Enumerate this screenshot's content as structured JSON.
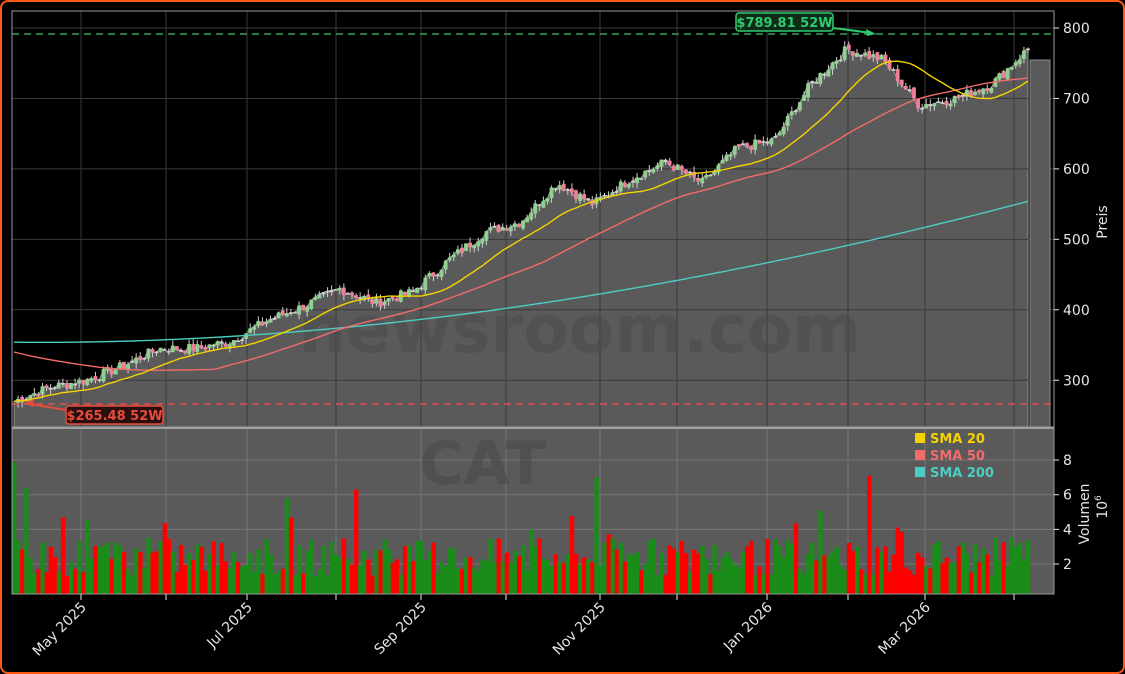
{
  "chart_data": [
    {
      "type": "candlestick",
      "title": "",
      "ticker_watermark": "CAT",
      "site_watermark": "newsroom.com",
      "ylabel": "Preis",
      "ylim": [
        236,
        824
      ],
      "yticks": [
        300,
        400,
        500,
        600,
        700,
        800
      ],
      "x_tick_labels": [
        "May 2025",
        "Jul 2025",
        "Sep 2025",
        "Nov 2025",
        "Jan 2026",
        "Mar 2026"
      ],
      "grid": true,
      "annotations": [
        {
          "label": "$789.81 52W",
          "value": 789.81,
          "type": "52-week high",
          "color": "#2ecc71"
        },
        {
          "label": "$265.48 52W",
          "value": 265.48,
          "type": "52-week low",
          "color": "#e74c3c"
        }
      ],
      "legend": [
        {
          "label": "SMA 20",
          "color": "#f5d300"
        },
        {
          "label": "SMA 50",
          "color": "#f36b6b"
        },
        {
          "label": "SMA 200",
          "color": "#4ecdc4"
        }
      ],
      "close_approx": [
        {
          "date": "2025-04-08",
          "close": 270
        },
        {
          "date": "2025-04-22",
          "close": 290
        },
        {
          "date": "2025-05-06",
          "close": 300
        },
        {
          "date": "2025-05-20",
          "close": 320
        },
        {
          "date": "2025-05-27",
          "close": 345
        },
        {
          "date": "2025-06-10",
          "close": 345
        },
        {
          "date": "2025-06-24",
          "close": 355
        },
        {
          "date": "2025-07-08",
          "close": 385
        },
        {
          "date": "2025-07-22",
          "close": 405
        },
        {
          "date": "2025-08-05",
          "close": 430
        },
        {
          "date": "2025-08-19",
          "close": 410
        },
        {
          "date": "2025-09-02",
          "close": 425
        },
        {
          "date": "2025-09-16",
          "close": 470
        },
        {
          "date": "2025-09-30",
          "close": 510
        },
        {
          "date": "2025-10-14",
          "close": 525
        },
        {
          "date": "2025-10-28",
          "close": 580
        },
        {
          "date": "2025-11-11",
          "close": 550
        },
        {
          "date": "2025-11-25",
          "close": 585
        },
        {
          "date": "2025-12-09",
          "close": 610
        },
        {
          "date": "2025-12-23",
          "close": 580
        },
        {
          "date": "2026-01-06",
          "close": 630
        },
        {
          "date": "2026-01-20",
          "close": 640
        },
        {
          "date": "2026-02-03",
          "close": 720
        },
        {
          "date": "2026-02-10",
          "close": 770
        },
        {
          "date": "2026-02-24",
          "close": 755
        },
        {
          "date": "2026-03-10",
          "close": 690
        },
        {
          "date": "2026-03-24",
          "close": 700
        },
        {
          "date": "2026-04-07",
          "close": 720
        },
        {
          "date": "2026-04-10",
          "close": 770
        }
      ],
      "sma": [
        {
          "name": "SMA 20",
          "start": 325,
          "end": 710
        },
        {
          "name": "SMA 50",
          "start": 340,
          "end": 718
        },
        {
          "name": "SMA 200",
          "start": 354,
          "end": 554
        }
      ]
    },
    {
      "type": "bar",
      "ylabel": "Volumen",
      "yunit": "10^6",
      "yticks": [
        2,
        4,
        6,
        8
      ],
      "ylim": [
        0.3,
        9.5
      ],
      "series_colors": {
        "up": "#1a8c1a",
        "down": "#ff0000"
      },
      "notable_peaks": [
        {
          "approx_date": "2025-04-07",
          "value": 7.9,
          "direction": "up"
        },
        {
          "approx_date": "2025-08-01",
          "value": 6.3,
          "direction": "down"
        },
        {
          "approx_date": "2025-10-27",
          "value": 7.1,
          "direction": "up"
        },
        {
          "approx_date": "2026-01-30",
          "value": 7.1,
          "direction": "down"
        }
      ]
    }
  ],
  "axes": {
    "price_ticks": [
      "300",
      "400",
      "500",
      "600",
      "700",
      "800"
    ],
    "volume_ticks": [
      "2",
      "4",
      "6",
      "8"
    ],
    "x_labels": [
      "May 2025",
      "Jul 2025",
      "Sep 2025",
      "Nov 2025",
      "Jan 2026",
      "Mar 2026"
    ],
    "price_title": "Preis",
    "volume_title": "Volumen",
    "volume_exponent": "10",
    "volume_exponent_power": "6"
  },
  "annotations": {
    "high_label": "$789.81 52W",
    "low_label": "$265.48 52W"
  },
  "legend": {
    "sma20": "SMA 20",
    "sma50": "SMA 50",
    "sma200": "SMA 200"
  },
  "watermark": {
    "site": "newsroom.com",
    "ticker": "CAT"
  },
  "colors": {
    "frame": "#ff5a14",
    "up_candle": "#8fd18f",
    "down_candle": "#f07f9a",
    "sma20": "#f5d300",
    "sma50": "#f36b6b",
    "sma200": "#4ecdc4",
    "high_line": "#3aa055",
    "low_line": "#d9534f",
    "area_fill": "#5a5a5a",
    "vol_up": "#1a8c1a",
    "vol_down": "#ff0000"
  }
}
